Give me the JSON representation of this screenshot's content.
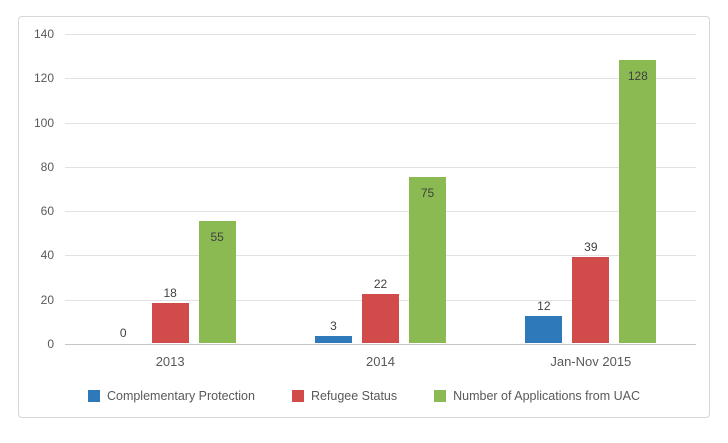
{
  "chart_data": {
    "type": "bar",
    "title": "",
    "xlabel": "",
    "ylabel": "",
    "categories": [
      "2013",
      "2014",
      "Jan-Nov 2015"
    ],
    "series": [
      {
        "name": "Complementary Protection",
        "color": "#2e79b9",
        "values": [
          0,
          3,
          12
        ],
        "label_position": "outside"
      },
      {
        "name": "Refugee Status",
        "color": "#d14b4a",
        "values": [
          18,
          22,
          39
        ],
        "label_position": "outside"
      },
      {
        "name": "Number of Applications from UAC",
        "color": "#8cba52",
        "values": [
          55,
          75,
          128
        ],
        "label_position": "inside"
      }
    ],
    "data_labels_shown": true,
    "ylim": [
      0,
      140
    ],
    "yticks": [
      0,
      20,
      40,
      60,
      80,
      100,
      120,
      140
    ],
    "grid": true,
    "legend_position": "bottom"
  },
  "style": {
    "series_colors": [
      "#2e79b9",
      "#d14b4a",
      "#8cba52"
    ],
    "text_color": "#595959",
    "data_label_color": "#404040",
    "gridline_color": "#e2e2e2",
    "axis_line_color": "#c6c6c6",
    "frame_border_color": "#d7d7d7",
    "background": "#ffffff"
  }
}
